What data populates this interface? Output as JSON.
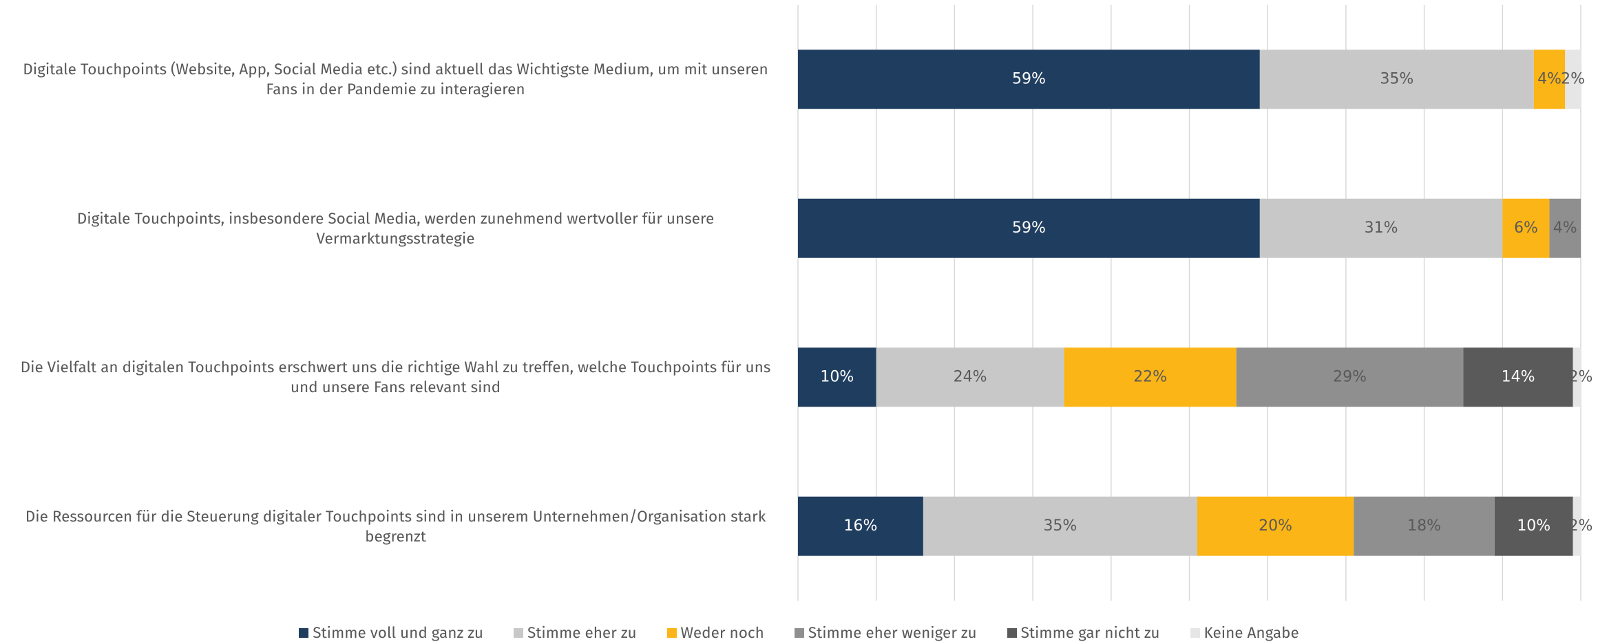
{
  "chart_data": {
    "type": "stacked-barh",
    "categories": [
      "Digitale Touchpoints (Website, App, Social Media etc.) sind aktuell das Wichtigste Medium, um mit unseren Fans in der Pandemie zu interagieren",
      "Digitale Touchpoints, insbesondere Social Media, werden zunehmend wertvoller für unsere Vermarktungsstrategie",
      "Die Vielfalt an digitalen Touchpoints erschwert uns die richtige Wahl zu treffen, welche Touchpoints für uns und unsere Fans relevant sind",
      "Die Ressourcen für die Steuerung digitaler Touchpoints sind in unserem Unternehmen/Organisation stark begrenzt"
    ],
    "series": [
      {
        "name": "Stimme voll und ganz zu",
        "color": "#1f3d5f",
        "values": [
          59,
          59,
          10,
          16
        ],
        "value_labels": [
          "59%",
          "59%",
          "10%",
          "16%"
        ]
      },
      {
        "name": "Stimme eher zu",
        "color": "#c8c8c8",
        "values": [
          35,
          31,
          24,
          35
        ],
        "value_labels": [
          "35%",
          "31%",
          "24%",
          "35%"
        ]
      },
      {
        "name": "Weder noch",
        "color": "#fbb516",
        "values": [
          4,
          6,
          22,
          20
        ],
        "value_labels": [
          "4%",
          "6%",
          "22%",
          "20%"
        ]
      },
      {
        "name": "Stimme eher weniger zu",
        "color": "#8f8f8f",
        "values": [
          null,
          4,
          29,
          18
        ],
        "value_labels": [
          null,
          "4%",
          "29%",
          "18%"
        ]
      },
      {
        "name": "Stimme gar nicht zu",
        "color": "#5a5a5a",
        "values": [
          null,
          null,
          14,
          10
        ],
        "value_labels": [
          null,
          null,
          "14%",
          "10%"
        ]
      },
      {
        "name": "Keine Angabe",
        "color": "#e6e6e6",
        "values": [
          2,
          null,
          2,
          2
        ],
        "value_labels": [
          "2%",
          null,
          "2%",
          "2%"
        ]
      }
    ],
    "xlim": [
      0,
      100
    ],
    "xticks": [
      0,
      10,
      20,
      30,
      40,
      50,
      60,
      70,
      80,
      90,
      100
    ],
    "grid": true,
    "legend": "bottom"
  }
}
